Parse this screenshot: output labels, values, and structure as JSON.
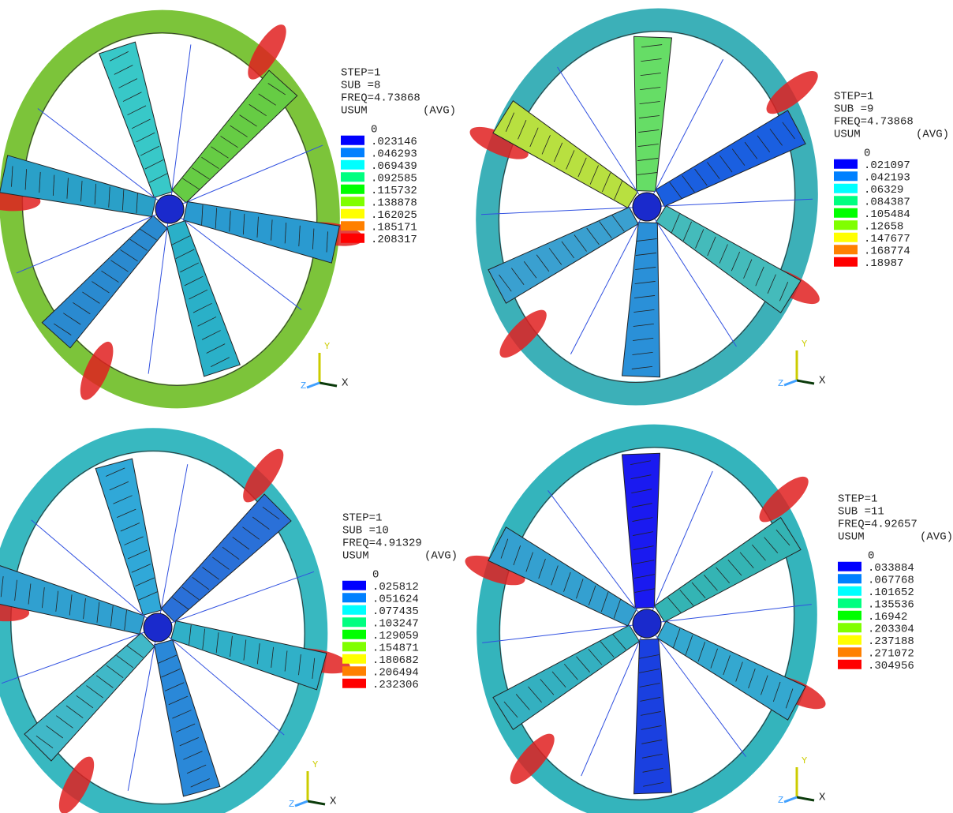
{
  "panels": [
    {
      "step": "STEP=1",
      "sub": "SUB =8",
      "freq": "FREQ=4.73868",
      "result": "USUM",
      "avg": "(AVG)",
      "legend": [
        "0",
        ".023146",
        ".046293",
        ".069439",
        ".092585",
        ".115732",
        ".138878",
        ".162025",
        ".185171",
        ".208317"
      ],
      "triad": {
        "y": "Y",
        "z": "Z",
        "x": "X"
      }
    },
    {
      "step": "STEP=1",
      "sub": "SUB =9",
      "freq": "FREQ=4.73868",
      "result": "USUM",
      "avg": "(AVG)",
      "legend": [
        "0",
        ".021097",
        ".042193",
        ".06329",
        ".084387",
        ".105484",
        ".12658",
        ".147677",
        ".168774",
        ".18987"
      ],
      "triad": {
        "y": "Y",
        "z": "Z",
        "x": "X"
      }
    },
    {
      "step": "STEP=1",
      "sub": "SUB =10",
      "freq": "FREQ=4.91329",
      "result": "USUM",
      "avg": "(AVG)",
      "legend": [
        "0",
        ".025812",
        ".051624",
        ".077435",
        ".103247",
        ".129059",
        ".154871",
        ".180682",
        ".206494",
        ".232306"
      ],
      "triad": {
        "y": "Y",
        "z": "Z",
        "x": "X"
      }
    },
    {
      "step": "STEP=1",
      "sub": "SUB =11",
      "freq": "FREQ=4.92657",
      "result": "USUM",
      "avg": "(AVG)",
      "legend": [
        "0",
        ".033884",
        ".067768",
        ".101652",
        ".135536",
        ".16942",
        ".203304",
        ".237188",
        ".271072",
        ".304956"
      ],
      "triad": {
        "y": "Y",
        "z": "Z",
        "x": "X"
      }
    }
  ]
}
